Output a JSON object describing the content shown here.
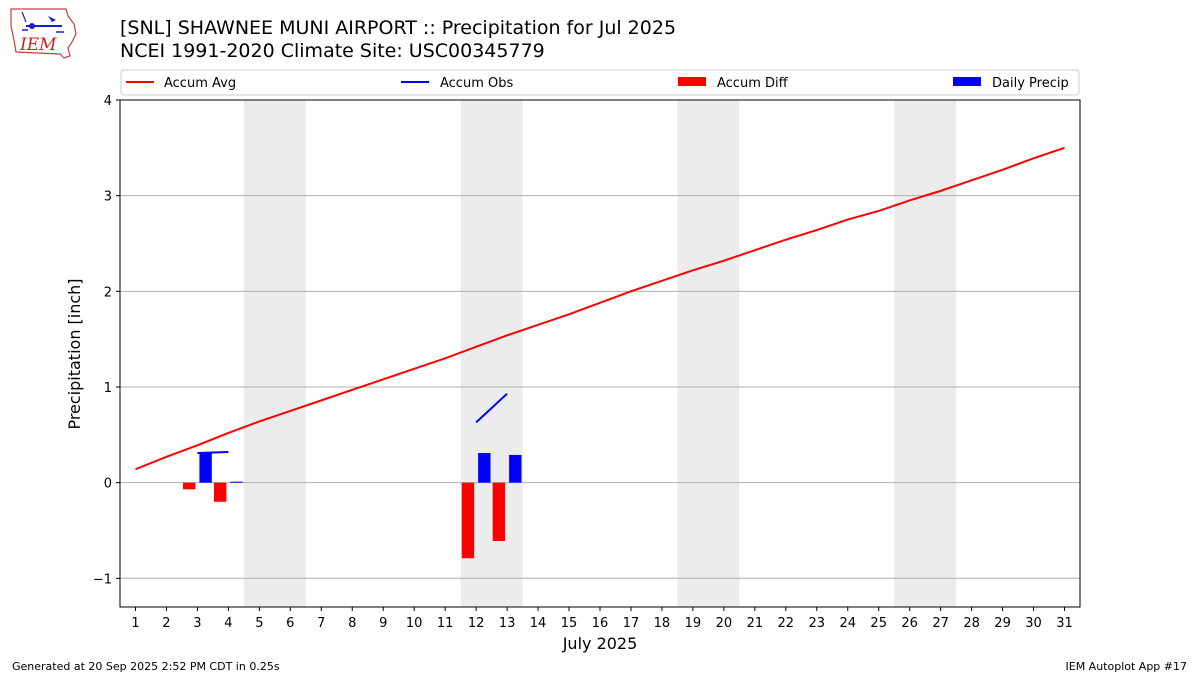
{
  "header": {
    "title_line1": "[SNL] SHAWNEE MUNI AIRPORT :: Precipitation for Jul 2025",
    "title_line2": "NCEI 1991-2020 Climate Site: USC00345779",
    "logo_text": "IEM"
  },
  "footer": {
    "generated": "Generated at 20 Sep 2025 2:52 PM CDT in 0.25s",
    "app": "IEM Autoplot App #17"
  },
  "colors": {
    "accum_avg": "#ff0000",
    "accum_obs": "#0000ff",
    "accum_diff": "#ff0000",
    "daily_precip": "#0000ff",
    "weekend_shade": "#ececec",
    "grid": "#b0b0b0"
  },
  "chart_data": {
    "type": "bar",
    "xlabel": "July 2025",
    "ylabel": "Precipitation [inch]",
    "xlim": [
      0.5,
      31.5
    ],
    "ylim": [
      -1.3,
      4.0
    ],
    "yticks": [
      -1,
      0,
      1,
      2,
      3,
      4
    ],
    "ytick_labels": [
      "−1",
      "0",
      "1",
      "2",
      "3",
      "4"
    ],
    "days": [
      1,
      2,
      3,
      4,
      5,
      6,
      7,
      8,
      9,
      10,
      11,
      12,
      13,
      14,
      15,
      16,
      17,
      18,
      19,
      20,
      21,
      22,
      23,
      24,
      25,
      26,
      27,
      28,
      29,
      30,
      31
    ],
    "shaded_day_ranges": [
      [
        4.5,
        6.5
      ],
      [
        11.5,
        13.5
      ],
      [
        18.5,
        20.5
      ],
      [
        25.5,
        27.5
      ]
    ],
    "legend": [
      "Accum Avg",
      "Accum Obs",
      "Accum Diff",
      "Daily Precip"
    ],
    "series": [
      {
        "name": "Accum Avg",
        "kind": "line",
        "x": [
          1,
          2,
          3,
          4,
          5,
          6,
          7,
          8,
          9,
          10,
          11,
          12,
          13,
          14,
          15,
          16,
          17,
          18,
          19,
          20,
          21,
          22,
          23,
          24,
          25,
          26,
          27,
          28,
          29,
          30,
          31
        ],
        "values": [
          0.14,
          0.27,
          0.39,
          0.52,
          0.64,
          0.75,
          0.86,
          0.97,
          1.08,
          1.19,
          1.3,
          1.42,
          1.54,
          1.65,
          1.76,
          1.88,
          2.0,
          2.11,
          2.22,
          2.32,
          2.43,
          2.54,
          2.64,
          2.75,
          2.84,
          2.95,
          3.05,
          3.16,
          3.27,
          3.39,
          3.5
        ]
      },
      {
        "name": "Accum Obs",
        "kind": "line",
        "segments": [
          {
            "x": [
              3,
              4
            ],
            "values": [
              0.31,
              0.32
            ]
          },
          {
            "x": [
              12,
              13
            ],
            "values": [
              0.63,
              0.93
            ]
          }
        ]
      },
      {
        "name": "Accum Diff",
        "kind": "bar",
        "x": [
          3,
          4,
          12,
          13
        ],
        "values": [
          -0.07,
          -0.2,
          -0.79,
          -0.61
        ]
      },
      {
        "name": "Daily Precip",
        "kind": "bar",
        "x": [
          3,
          4,
          12,
          13
        ],
        "values": [
          0.31,
          0.01,
          0.31,
          0.29
        ]
      }
    ]
  }
}
